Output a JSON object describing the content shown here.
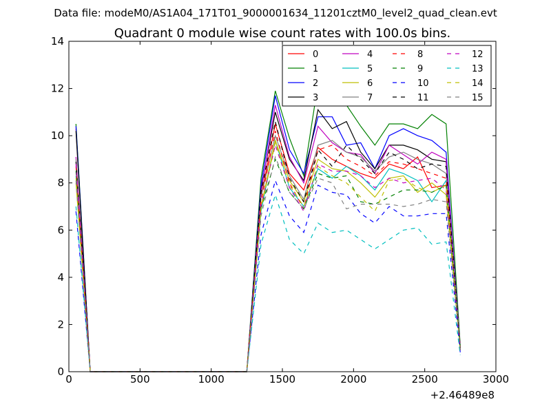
{
  "chart_data": {
    "type": "line",
    "suptitle": "Data file: modeM0/AS1A04_171T01_9000001634_11201cztM0_level2_quad_clean.evt",
    "title": "Quadrant 0 module wise count rates with 100.0s bins.",
    "xlabel": "",
    "ylabel": "",
    "x_offset_label": "+2.46489e8",
    "xlim": [
      0,
      3000
    ],
    "ylim": [
      0,
      14
    ],
    "xticks": [
      "0",
      "500",
      "1000",
      "1500",
      "2000",
      "2500",
      "3000"
    ],
    "yticks": [
      "0",
      "2",
      "4",
      "6",
      "8",
      "10",
      "12",
      "14"
    ],
    "legend_position": "top-right",
    "grid": false,
    "x": [
      50,
      150,
      250,
      350,
      450,
      550,
      650,
      750,
      850,
      950,
      1050,
      1150,
      1250,
      1350,
      1450,
      1550,
      1650,
      1750,
      1850,
      1950,
      2050,
      2150,
      2250,
      2350,
      2450,
      2550,
      2650,
      2750
    ],
    "series": [
      {
        "name": "0",
        "color": "#ff0000",
        "dash": "solid",
        "values": [
          10.3,
          0,
          0,
          0,
          0,
          0,
          0,
          0,
          0,
          0,
          0,
          0,
          0,
          7.4,
          10.5,
          8.4,
          7.7,
          9.5,
          9.0,
          8.7,
          8.4,
          8.2,
          8.8,
          8.6,
          9.1,
          7.8,
          7.9,
          1.0
        ]
      },
      {
        "name": "1",
        "color": "#008000",
        "dash": "solid",
        "values": [
          10.5,
          0,
          0,
          0,
          0,
          0,
          0,
          0,
          0,
          0,
          0,
          0,
          0,
          8.2,
          11.9,
          9.9,
          8.3,
          12.2,
          11.5,
          11.3,
          10.4,
          9.6,
          10.5,
          10.5,
          10.3,
          10.9,
          10.5,
          1.1
        ]
      },
      {
        "name": "2",
        "color": "#0000ff",
        "dash": "solid",
        "values": [
          10.4,
          0,
          0,
          0,
          0,
          0,
          0,
          0,
          0,
          0,
          0,
          0,
          0,
          7.9,
          11.7,
          9.4,
          8.4,
          10.8,
          10.8,
          9.6,
          9.7,
          8.6,
          10.0,
          10.3,
          10.0,
          9.8,
          9.3,
          1.0
        ]
      },
      {
        "name": "3",
        "color": "#000000",
        "dash": "solid",
        "values": [
          10.2,
          0,
          0,
          0,
          0,
          0,
          0,
          0,
          0,
          0,
          0,
          0,
          0,
          7.7,
          11.0,
          9.0,
          8.1,
          11.1,
          10.3,
          10.6,
          9.3,
          8.6,
          9.6,
          9.6,
          9.4,
          9.0,
          8.9,
          1.0
        ]
      },
      {
        "name": "4",
        "color": "#bf00bf",
        "dash": "solid",
        "values": [
          9.1,
          0,
          0,
          0,
          0,
          0,
          0,
          0,
          0,
          0,
          0,
          0,
          0,
          7.6,
          11.3,
          9.1,
          8.0,
          10.4,
          9.7,
          9.3,
          9.2,
          8.4,
          9.6,
          9.2,
          8.8,
          9.3,
          9.0,
          1.0
        ]
      },
      {
        "name": "5",
        "color": "#00bfbf",
        "dash": "solid",
        "values": [
          8.3,
          0,
          0,
          0,
          0,
          0,
          0,
          0,
          0,
          0,
          0,
          0,
          0,
          6.8,
          9.8,
          7.8,
          7.0,
          8.6,
          8.2,
          8.7,
          8.3,
          7.7,
          8.6,
          8.4,
          8.1,
          7.2,
          8.1,
          0.9
        ]
      },
      {
        "name": "6",
        "color": "#bfbf00",
        "dash": "solid",
        "values": [
          8.0,
          0,
          0,
          0,
          0,
          0,
          0,
          0,
          0,
          0,
          0,
          0,
          0,
          7.0,
          9.8,
          8.1,
          7.2,
          9.0,
          8.6,
          8.5,
          8.0,
          7.4,
          8.2,
          8.3,
          7.6,
          8.0,
          7.5,
          0.9
        ]
      },
      {
        "name": "7",
        "color": "#808080",
        "dash": "solid",
        "values": [
          9.0,
          0,
          0,
          0,
          0,
          0,
          0,
          0,
          0,
          0,
          0,
          0,
          0,
          7.4,
          10.0,
          8.3,
          7.3,
          9.6,
          9.8,
          9.3,
          9.1,
          8.5,
          9.1,
          9.3,
          9.0,
          8.8,
          8.4,
          1.0
        ]
      },
      {
        "name": "8",
        "color": "#ff0000",
        "dash": "dashed",
        "values": [
          8.7,
          0,
          0,
          0,
          0,
          0,
          0,
          0,
          0,
          0,
          0,
          0,
          0,
          7.2,
          10.2,
          8.0,
          6.9,
          9.4,
          9.6,
          9.0,
          8.7,
          8.3,
          8.9,
          8.8,
          8.6,
          8.4,
          8.2,
          1.0
        ]
      },
      {
        "name": "9",
        "color": "#008000",
        "dash": "dashed",
        "values": [
          8.5,
          0,
          0,
          0,
          0,
          0,
          0,
          0,
          0,
          0,
          0,
          0,
          0,
          6.9,
          9.0,
          7.6,
          6.9,
          8.4,
          8.2,
          8.3,
          7.2,
          7.1,
          7.4,
          7.7,
          7.7,
          7.6,
          7.9,
          0.9
        ]
      },
      {
        "name": "10",
        "color": "#0000ff",
        "dash": "dashed",
        "values": [
          6.8,
          0,
          0,
          0,
          0,
          0,
          0,
          0,
          0,
          0,
          0,
          0,
          0,
          5.8,
          8.1,
          6.6,
          5.9,
          7.9,
          7.6,
          7.5,
          6.7,
          6.3,
          7.0,
          6.6,
          6.6,
          6.7,
          6.7,
          0.8
        ]
      },
      {
        "name": "11",
        "color": "#000000",
        "dash": "dashed",
        "values": [
          8.9,
          0,
          0,
          0,
          0,
          0,
          0,
          0,
          0,
          0,
          0,
          0,
          0,
          7.6,
          10.6,
          8.2,
          7.2,
          9.4,
          8.7,
          9.6,
          9.0,
          8.4,
          9.3,
          9.0,
          8.6,
          8.8,
          8.7,
          1.0
        ]
      },
      {
        "name": "12",
        "color": "#bf00bf",
        "dash": "dashed",
        "values": [
          8.8,
          0,
          0,
          0,
          0,
          0,
          0,
          0,
          0,
          0,
          0,
          0,
          0,
          7.0,
          9.6,
          7.8,
          6.8,
          8.8,
          8.5,
          8.5,
          8.3,
          7.8,
          8.2,
          8.0,
          8.1,
          8.2,
          7.7,
          0.9
        ]
      },
      {
        "name": "13",
        "color": "#00bfbf",
        "dash": "dashed",
        "values": [
          7.0,
          0,
          0,
          0,
          0,
          0,
          0,
          0,
          0,
          0,
          0,
          0,
          0,
          5.4,
          7.5,
          5.6,
          5.0,
          6.3,
          5.9,
          6.0,
          5.6,
          5.2,
          5.6,
          6.0,
          6.1,
          5.4,
          5.5,
          0.7
        ]
      },
      {
        "name": "14",
        "color": "#bfbf00",
        "dash": "dashed",
        "values": [
          8.2,
          0,
          0,
          0,
          0,
          0,
          0,
          0,
          0,
          0,
          0,
          0,
          0,
          6.9,
          9.7,
          7.9,
          7.0,
          8.7,
          8.3,
          8.0,
          7.4,
          6.8,
          8.1,
          8.2,
          7.8,
          7.6,
          7.9,
          0.9
        ]
      },
      {
        "name": "15",
        "color": "#808080",
        "dash": "dashed",
        "values": [
          8.1,
          0,
          0,
          0,
          0,
          0,
          0,
          0,
          0,
          0,
          0,
          0,
          0,
          6.6,
          9.1,
          7.6,
          6.9,
          8.2,
          8.0,
          6.9,
          7.1,
          7.1,
          7.1,
          7.0,
          7.1,
          7.3,
          7.2,
          0.9
        ]
      }
    ]
  }
}
